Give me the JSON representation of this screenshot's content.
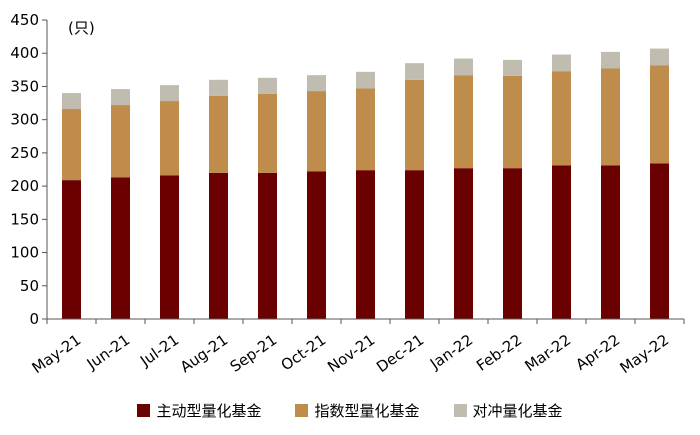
{
  "chart_data": {
    "type": "bar",
    "stacked": true,
    "unit_label": "(只)",
    "title": "",
    "xlabel": "",
    "ylabel": "",
    "ylim": [
      0,
      450
    ],
    "yticks": [
      0,
      50,
      100,
      150,
      200,
      250,
      300,
      350,
      400,
      450
    ],
    "grid": false,
    "legend_position": "bottom",
    "categories": [
      "May-21",
      "Jun-21",
      "Jul-21",
      "Aug-21",
      "Sep-21",
      "Oct-21",
      "Nov-21",
      "Dec-21",
      "Jan-22",
      "Feb-22",
      "Mar-22",
      "Apr-22",
      "May-22"
    ],
    "series": [
      {
        "name": "主动型量化基金",
        "color": "#6b0000",
        "values": [
          209,
          213,
          216,
          220,
          220,
          222,
          224,
          224,
          227,
          227,
          231,
          231,
          234
        ]
      },
      {
        "name": "指数型量化基金",
        "color": "#bf8c4c",
        "values": [
          107,
          109,
          112,
          116,
          119,
          121,
          123,
          136,
          140,
          139,
          142,
          146,
          148
        ]
      },
      {
        "name": "对冲量化基金",
        "color": "#c0bcb0",
        "values": [
          24,
          24,
          24,
          24,
          24,
          24,
          25,
          25,
          25,
          24,
          25,
          25,
          25
        ]
      }
    ]
  }
}
